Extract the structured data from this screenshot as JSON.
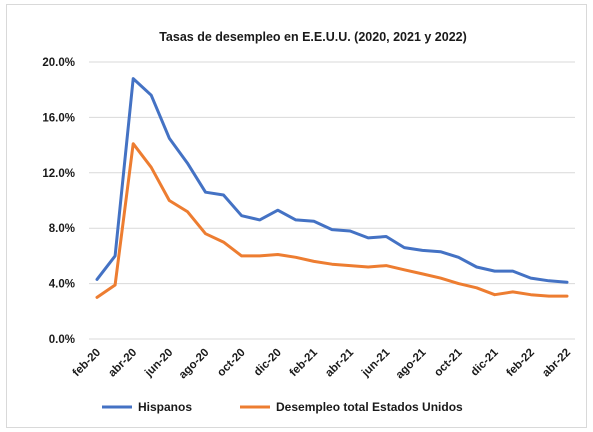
{
  "chart_data": {
    "type": "line",
    "title": "Tasas de desempleo en E.E.U.U. (2020, 2021 y 2022)",
    "xlabel": "",
    "ylabel": "",
    "ylim": [
      0,
      20
    ],
    "y_ticks": [
      "0.0%",
      "4.0%",
      "8.0%",
      "12.0%",
      "16.0%",
      "20.0%"
    ],
    "y_tick_values": [
      0,
      4,
      8,
      12,
      16,
      20
    ],
    "x": [
      "feb-20",
      "mar-20",
      "abr-20",
      "may-20",
      "jun-20",
      "jul-20",
      "ago-20",
      "sep-20",
      "oct-20",
      "nov-20",
      "dic-20",
      "ene-21",
      "feb-21",
      "mar-21",
      "abr-21",
      "may-21",
      "jun-21",
      "jul-21",
      "ago-21",
      "sep-21",
      "oct-21",
      "nov-21",
      "dic-21",
      "ene-22",
      "feb-22",
      "mar-22",
      "abr-22"
    ],
    "x_tick_labels": [
      "feb-20",
      "abr-20",
      "jun-20",
      "ago-20",
      "oct-20",
      "dic-20",
      "feb-21",
      "abr-21",
      "jun-21",
      "ago-21",
      "oct-21",
      "dic-21",
      "feb-22",
      "abr-22"
    ],
    "grid": true,
    "legend_position": "bottom",
    "series": [
      {
        "name": "Hispanos",
        "color": "#4472c4",
        "values": [
          4.3,
          6.0,
          18.8,
          17.6,
          14.5,
          12.7,
          10.6,
          10.4,
          8.9,
          8.6,
          9.3,
          8.6,
          8.5,
          7.9,
          7.8,
          7.3,
          7.4,
          6.6,
          6.4,
          6.3,
          5.9,
          5.2,
          4.9,
          4.9,
          4.4,
          4.2,
          4.1
        ]
      },
      {
        "name": "Desempleo total Estados Unidos",
        "color": "#ed7d31",
        "values": [
          3.0,
          3.9,
          14.1,
          12.4,
          10.0,
          9.2,
          7.6,
          7.0,
          6.0,
          6.0,
          6.1,
          5.9,
          5.6,
          5.4,
          5.3,
          5.2,
          5.3,
          5.0,
          4.7,
          4.4,
          4.0,
          3.7,
          3.2,
          3.4,
          3.2,
          3.1,
          3.1
        ]
      }
    ]
  }
}
